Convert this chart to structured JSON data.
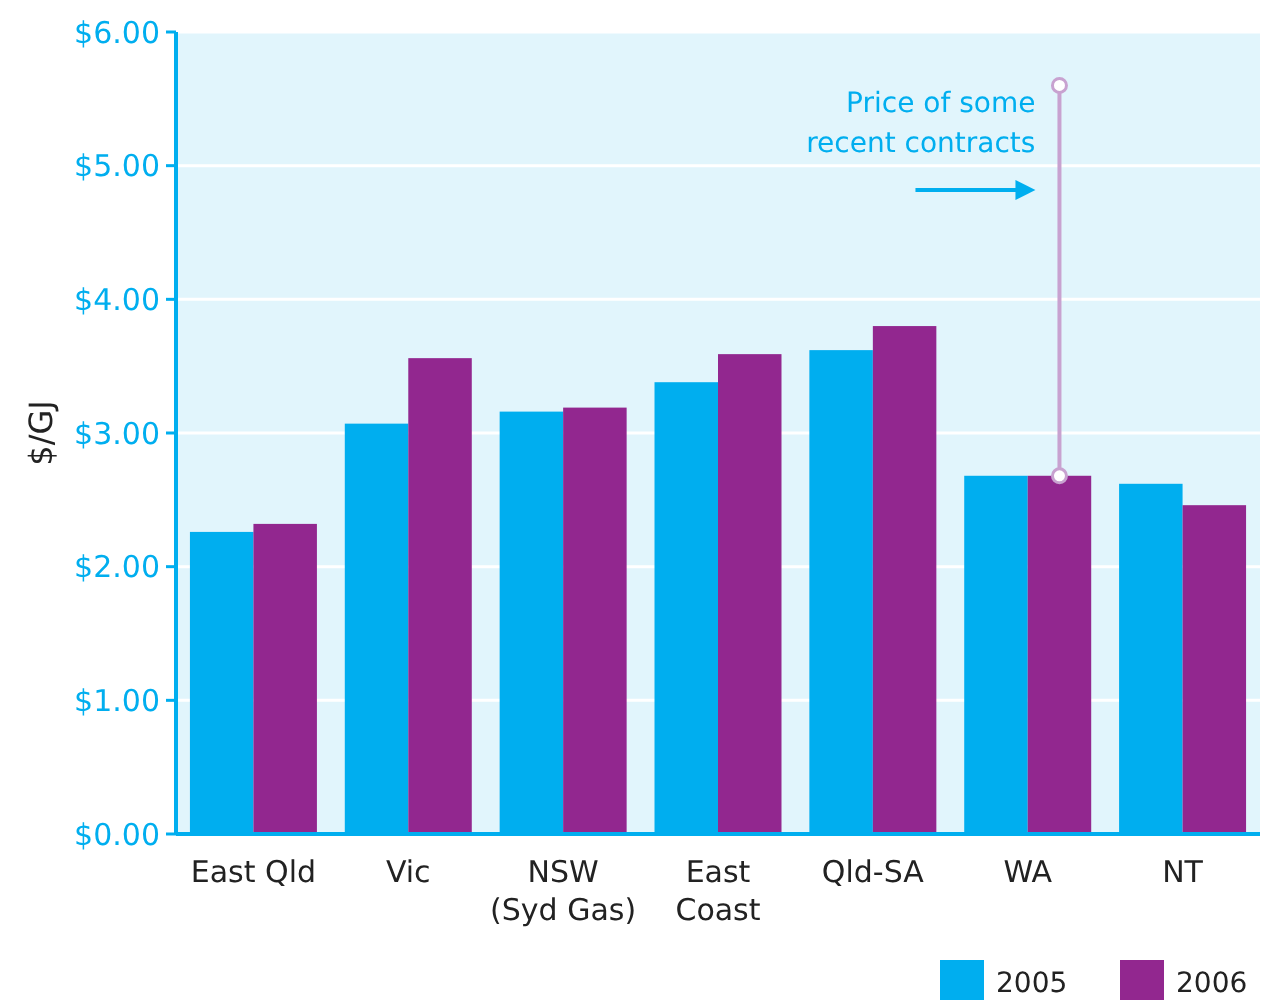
{
  "chart_data": {
    "type": "bar",
    "ylabel": "$/GJ",
    "categories": [
      "East Qld",
      "Vic",
      "NSW\n(Syd Gas)",
      "East\nCoast",
      "Qld-SA",
      "WA",
      "NT"
    ],
    "series": [
      {
        "name": "2005",
        "color": "#00aeef",
        "values": [
          2.26,
          3.07,
          3.16,
          3.38,
          3.62,
          2.68,
          2.62
        ]
      },
      {
        "name": "2006",
        "color": "#92278f",
        "values": [
          2.32,
          3.56,
          3.19,
          3.59,
          3.8,
          2.68,
          2.46
        ]
      },
      {
        "type": "line",
        "color": "#c8a2d0",
        "x": [
          "WA",
          "WA"
        ],
        "values": [
          2.68,
          5.6
        ],
        "marker": "circle"
      }
    ],
    "ylim": [
      0,
      6
    ],
    "yticks": [
      {
        "value": 0,
        "label": "$0.00"
      },
      {
        "value": 1,
        "label": "$1.00"
      },
      {
        "value": 2,
        "label": "$2.00"
      },
      {
        "value": 3,
        "label": "$3.00"
      },
      {
        "value": 4,
        "label": "$4.00"
      },
      {
        "value": 5,
        "label": "$5.00"
      },
      {
        "value": 6,
        "label": "$6.00"
      }
    ],
    "grid": "y",
    "legend": "bottom right",
    "annotations": [
      "Price of some\nrecent contracts"
    ]
  }
}
